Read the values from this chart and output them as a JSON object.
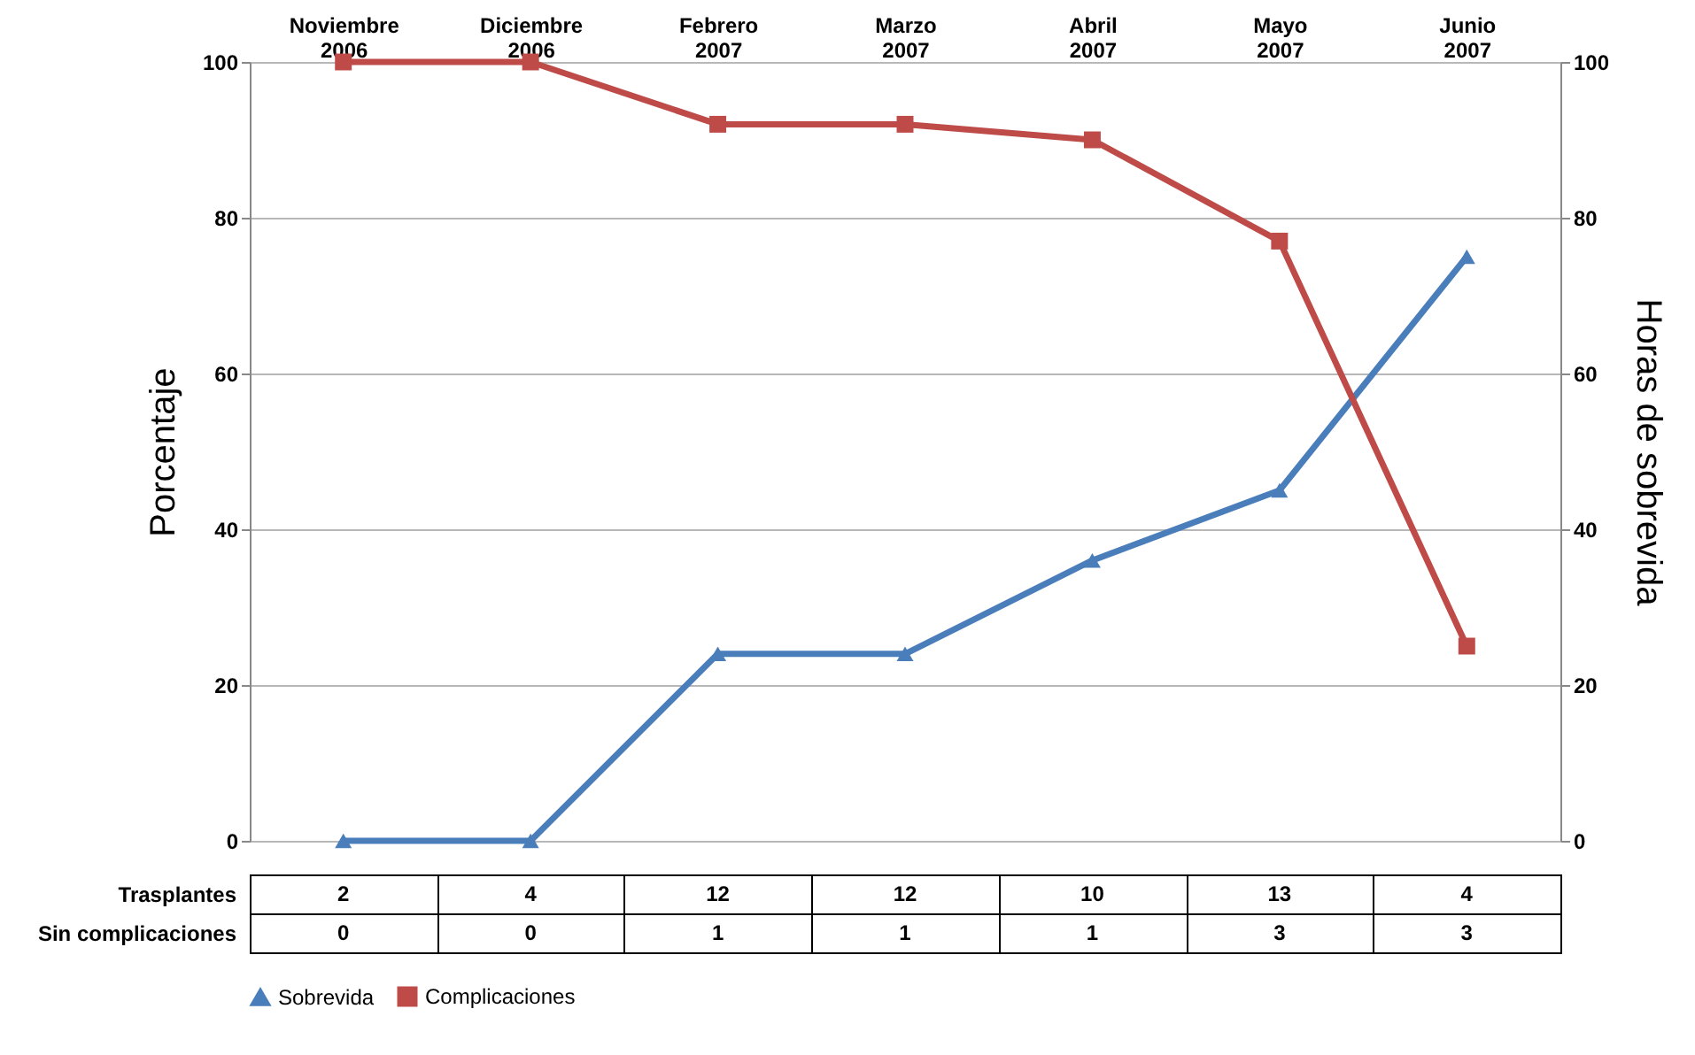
{
  "chart_data": {
    "type": "line",
    "ylabel": "Porcentaje",
    "y2label": "Horas de sobrevida",
    "categories": [
      "Noviembre 2006",
      "Diciembre 2006",
      "Febrero 2007",
      "Marzo 2007",
      "Abril 2007",
      "Mayo 2007",
      "Junio 2007"
    ],
    "series": [
      {
        "name": "Sobrevida",
        "color": "#4a7ebb",
        "marker": "triangle",
        "axis": "y2",
        "values": [
          0,
          0,
          24,
          24,
          36,
          45,
          75
        ]
      },
      {
        "name": "Complicaciones",
        "color": "#be4b48",
        "marker": "square",
        "values": [
          100,
          100,
          92,
          92,
          90,
          77,
          25
        ]
      }
    ],
    "ylim": [
      0,
      100
    ],
    "yticks": [
      0,
      20,
      40,
      60,
      80,
      100
    ],
    "y2lim": [
      0,
      100
    ],
    "y2ticks": [
      0,
      20,
      40,
      60,
      80,
      100
    ],
    "grid": "y",
    "legend": "bottom",
    "line_style": "solid",
    "annotations": [
      "Trasplantes",
      "2",
      "4",
      "12",
      "12",
      "10",
      "13",
      "4",
      "Sin complicaciones",
      "0",
      "0",
      "1",
      "1",
      "1",
      "3",
      "3"
    ]
  }
}
